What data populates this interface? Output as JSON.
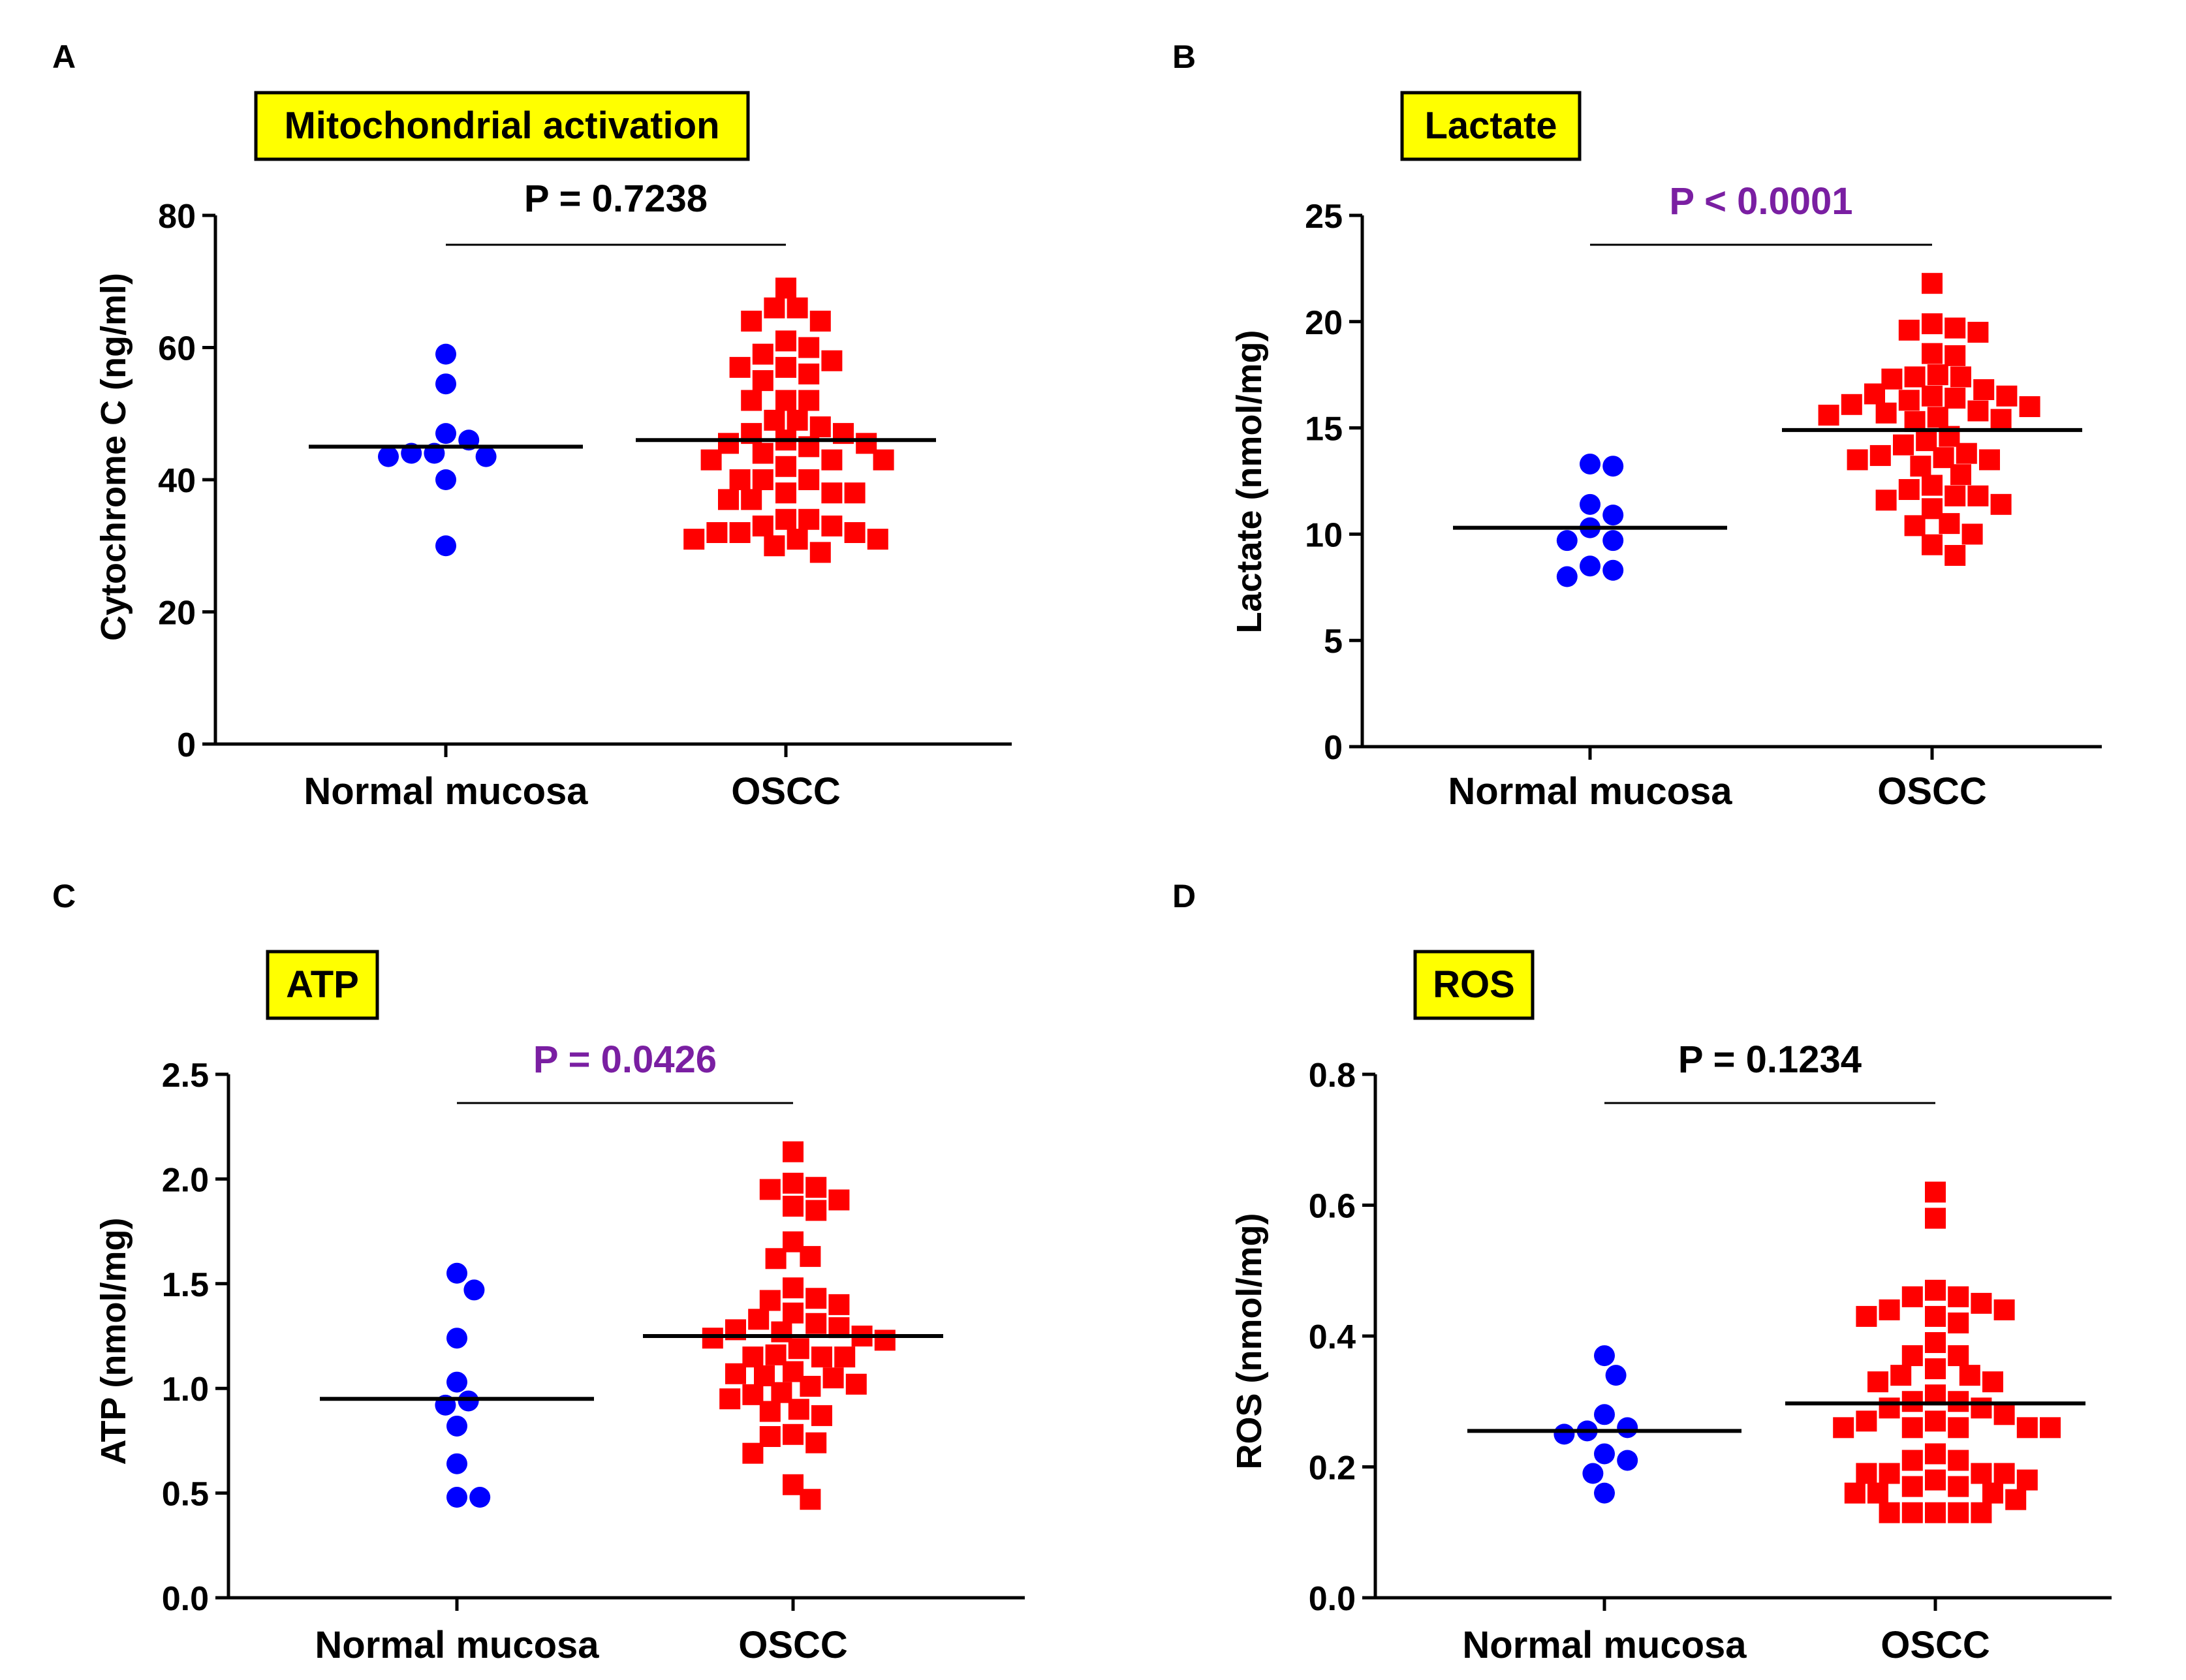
{
  "colors": {
    "normal": "#0000ff",
    "oscc": "#ff0000",
    "significant_p": "#7a1fa2",
    "nonsignificant_p": "#000000",
    "title_box": "#ffff00",
    "axis": "#000000"
  },
  "chart_data": [
    {
      "panel": "A",
      "type": "scatter",
      "title": "Mitochondrial activation",
      "xlabel": "",
      "ylabel": "Cytochrome C (ng/ml)",
      "categories": [
        "Normal mucosa",
        "OSCC"
      ],
      "ylim": [
        0,
        80
      ],
      "yticks": [
        "0",
        "20",
        "40",
        "60",
        "80"
      ],
      "p_value": "P = 0.7238",
      "significant": false,
      "grid": false,
      "series": [
        {
          "name": "Normal mucosa",
          "marker": "circle",
          "median": 45,
          "values": [
            59,
            54.5,
            47,
            46,
            44,
            44,
            43.5,
            43.5,
            40,
            30
          ]
        },
        {
          "name": "OSCC",
          "marker": "square",
          "median": 46,
          "values": [
            69,
            66,
            66,
            64,
            64,
            61,
            60,
            59,
            58,
            57,
            57,
            56,
            55,
            52,
            52,
            52,
            49,
            49,
            48,
            47,
            47,
            46,
            45.5,
            45.5,
            45,
            44,
            43,
            43,
            43,
            42,
            40,
            40,
            40,
            38,
            38,
            38,
            37,
            37,
            34,
            34,
            33,
            33,
            32,
            32,
            32,
            31,
            31,
            31,
            30,
            29
          ]
        }
      ]
    },
    {
      "panel": "B",
      "type": "scatter",
      "title": "Lactate",
      "xlabel": "",
      "ylabel": "Lactate (nmol/mg)",
      "categories": [
        "Normal mucosa",
        "OSCC"
      ],
      "ylim": [
        0,
        25
      ],
      "yticks": [
        "0",
        "5",
        "10",
        "15",
        "20",
        "25"
      ],
      "p_value": "P < 0.0001",
      "significant": true,
      "grid": false,
      "series": [
        {
          "name": "Normal mucosa",
          "marker": "circle",
          "median": 10.3,
          "values": [
            13.3,
            13.2,
            11.4,
            10.9,
            10.3,
            9.7,
            9.7,
            8.5,
            8.3,
            8.0
          ]
        },
        {
          "name": "OSCC",
          "marker": "square",
          "median": 14.9,
          "values": [
            21.8,
            19.9,
            19.7,
            19.6,
            19.5,
            18.5,
            18.4,
            17.5,
            17.4,
            17.4,
            17.3,
            16.8,
            16.6,
            16.5,
            16.5,
            16.4,
            16.3,
            16.1,
            16.0,
            15.8,
            15.7,
            15.6,
            15.5,
            15.4,
            15.3,
            14.6,
            14.4,
            14.2,
            13.8,
            13.7,
            13.6,
            13.5,
            13.5,
            13.2,
            12.8,
            12.3,
            12.1,
            11.8,
            11.8,
            11.6,
            11.4,
            11.2,
            10.5,
            10.4,
            10.0,
            9.5,
            9.0
          ]
        }
      ]
    },
    {
      "panel": "C",
      "type": "scatter",
      "title": "ATP",
      "xlabel": "",
      "ylabel": "ATP (nmol/mg)",
      "categories": [
        "Normal mucosa",
        "OSCC"
      ],
      "ylim": [
        0,
        2.5
      ],
      "yticks": [
        "0.0",
        "0.5",
        "1.0",
        "1.5",
        "2.0",
        "2.5"
      ],
      "p_value": "P = 0.0426",
      "significant": true,
      "grid": false,
      "series": [
        {
          "name": "Normal mucosa",
          "marker": "circle",
          "median": 0.95,
          "values": [
            1.55,
            1.47,
            1.24,
            1.03,
            0.94,
            0.92,
            0.82,
            0.64,
            0.48,
            0.48
          ]
        },
        {
          "name": "OSCC",
          "marker": "square",
          "median": 1.25,
          "values": [
            2.13,
            1.98,
            1.96,
            1.95,
            1.9,
            1.87,
            1.85,
            1.7,
            1.63,
            1.62,
            1.48,
            1.43,
            1.42,
            1.4,
            1.36,
            1.33,
            1.31,
            1.29,
            1.28,
            1.27,
            1.25,
            1.24,
            1.23,
            1.19,
            1.16,
            1.15,
            1.15,
            1.15,
            1.08,
            1.07,
            1.06,
            1.05,
            1.02,
            1.01,
            0.98,
            0.97,
            0.95,
            0.9,
            0.89,
            0.87,
            0.78,
            0.77,
            0.74,
            0.69,
            0.54,
            0.47
          ]
        }
      ]
    },
    {
      "panel": "D",
      "type": "scatter",
      "title": "ROS",
      "xlabel": "",
      "ylabel": "ROS (nmol/mg)",
      "categories": [
        "Normal mucosa",
        "OSCC"
      ],
      "ylim": [
        0,
        0.8
      ],
      "yticks": [
        "0.0",
        "0.2",
        "0.4",
        "0.6",
        "0.8"
      ],
      "p_value": "P = 0.1234",
      "significant": false,
      "grid": false,
      "series": [
        {
          "name": "Normal mucosa",
          "marker": "circle",
          "median": 0.255,
          "values": [
            0.37,
            0.34,
            0.28,
            0.26,
            0.255,
            0.25,
            0.22,
            0.21,
            0.19,
            0.16
          ]
        },
        {
          "name": "OSCC",
          "marker": "square",
          "median": 0.297,
          "values": [
            0.62,
            0.58,
            0.47,
            0.46,
            0.46,
            0.45,
            0.44,
            0.44,
            0.43,
            0.43,
            0.42,
            0.39,
            0.37,
            0.37,
            0.35,
            0.34,
            0.34,
            0.33,
            0.33,
            0.31,
            0.3,
            0.3,
            0.29,
            0.29,
            0.28,
            0.27,
            0.27,
            0.26,
            0.26,
            0.26,
            0.26,
            0.26,
            0.22,
            0.21,
            0.21,
            0.19,
            0.19,
            0.19,
            0.19,
            0.18,
            0.18,
            0.17,
            0.17,
            0.16,
            0.16,
            0.16,
            0.15,
            0.13,
            0.13,
            0.13,
            0.13,
            0.13
          ]
        }
      ]
    }
  ]
}
